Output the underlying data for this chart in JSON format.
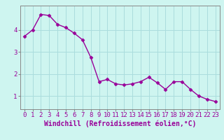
{
  "x": [
    0,
    1,
    2,
    3,
    4,
    5,
    6,
    7,
    8,
    9,
    10,
    11,
    12,
    13,
    14,
    15,
    16,
    17,
    18,
    19,
    20,
    21,
    22,
    23
  ],
  "y": [
    3.7,
    4.0,
    4.7,
    4.65,
    4.25,
    4.1,
    3.85,
    3.55,
    2.75,
    1.65,
    1.75,
    1.55,
    1.5,
    1.55,
    1.65,
    1.85,
    1.6,
    1.3,
    1.65,
    1.65,
    1.3,
    1.0,
    0.85,
    0.75
  ],
  "line_color": "#990099",
  "marker": "D",
  "marker_size": 2.5,
  "bg_color": "#cef5f0",
  "grid_color": "#aadddd",
  "xlabel": "Windchill (Refroidissement éolien,°C)",
  "xlim": [
    -0.5,
    23.5
  ],
  "ylim": [
    0.4,
    5.1
  ],
  "yticks": [
    1,
    2,
    3,
    4
  ],
  "xtick_labels": [
    "0",
    "1",
    "2",
    "3",
    "4",
    "5",
    "6",
    "7",
    "8",
    "9",
    "10",
    "11",
    "12",
    "13",
    "14",
    "15",
    "16",
    "17",
    "18",
    "19",
    "20",
    "21",
    "22",
    "23"
  ],
  "xlabel_fontsize": 7,
  "tick_fontsize": 6.5,
  "line_width": 1.0
}
